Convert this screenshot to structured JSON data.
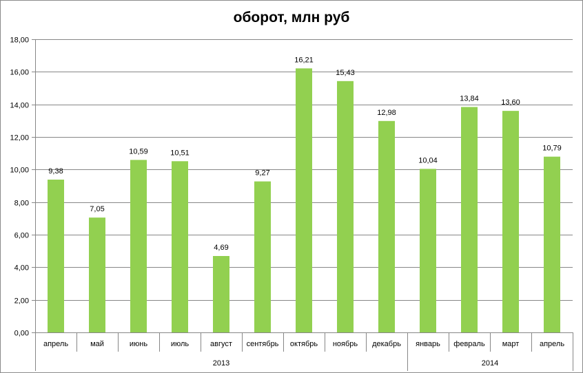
{
  "chart_data": {
    "type": "bar",
    "title": "оборот, млн руб",
    "xlabel": "",
    "ylabel": "",
    "ylim": [
      0,
      18
    ],
    "yticks": [
      0,
      2,
      4,
      6,
      8,
      10,
      12,
      14,
      16,
      18
    ],
    "ytick_labels": [
      "0,00",
      "2,00",
      "4,00",
      "6,00",
      "8,00",
      "10,00",
      "12,00",
      "14,00",
      "16,00",
      "18,00"
    ],
    "categories": [
      "апрель",
      "май",
      "июнь",
      "июль",
      "август",
      "сентябрь",
      "октябрь",
      "ноябрь",
      "декабрь",
      "январь",
      "февраль",
      "март",
      "апрель"
    ],
    "values": [
      9.38,
      7.05,
      10.59,
      10.51,
      4.69,
      9.27,
      16.21,
      15.43,
      12.98,
      10.04,
      13.84,
      13.6,
      10.79
    ],
    "data_labels": [
      "9,38",
      "7,05",
      "10,59",
      "10,51",
      "4,69",
      "9,27",
      "16,21",
      "15,43",
      "12,98",
      "10,04",
      "13,84",
      "13,60",
      "10,79"
    ],
    "groups": [
      {
        "label": "2013",
        "count": 9
      },
      {
        "label": "2014",
        "count": 4
      }
    ],
    "grid": true,
    "legend": "none",
    "colors": {
      "bar": "#92d050",
      "grid": "#868686",
      "axis": "#868686"
    }
  }
}
